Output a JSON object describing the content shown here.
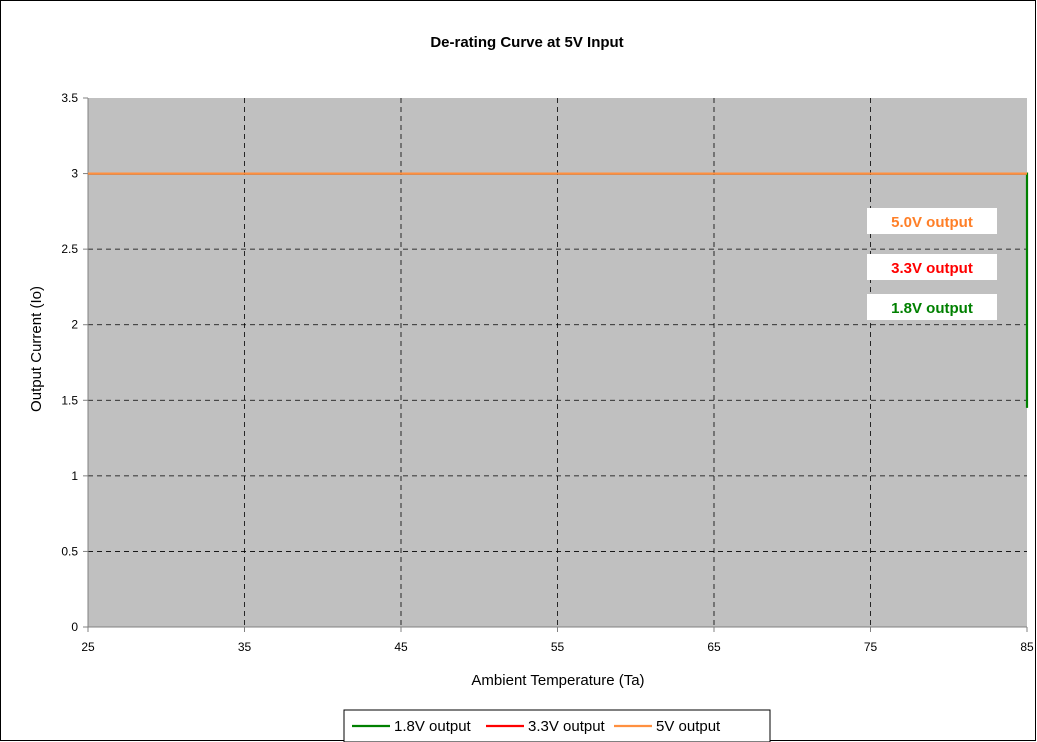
{
  "chart_data": {
    "type": "line",
    "title": "De-rating Curve at 5V Input",
    "xlabel": "Ambient Temperature (Ta)",
    "ylabel": "Output Current (Io)",
    "xlim": [
      25,
      85
    ],
    "ylim": [
      0,
      3.5
    ],
    "x_ticks": [
      "25",
      "35",
      "45",
      "55",
      "65",
      "75",
      "85"
    ],
    "y_ticks": [
      "0",
      "0.5",
      "1",
      "1.5",
      "2",
      "2.5",
      "3",
      "3.5"
    ],
    "grid": true,
    "legend_position": "bottom",
    "colors": {
      "plot_background": "#c0c0c0",
      "grid": "#000000"
    },
    "series": [
      {
        "name": "1.8V output",
        "color": "#008000",
        "x": [
          25,
          85,
          85
        ],
        "y": [
          3,
          3,
          1.45
        ]
      },
      {
        "name": "3.3V output",
        "color": "#ff0000",
        "x": [
          25,
          85
        ],
        "y": [
          3,
          3
        ]
      },
      {
        "name": "5V output",
        "color": "#ff9040",
        "x": [
          25,
          85
        ],
        "y": [
          3,
          3
        ]
      }
    ],
    "annotations": [
      {
        "text": "5.0V output",
        "color": "#ff7f27"
      },
      {
        "text": "3.3V output",
        "color": "#ff0000"
      },
      {
        "text": "1.8V output",
        "color": "#008000"
      }
    ]
  }
}
